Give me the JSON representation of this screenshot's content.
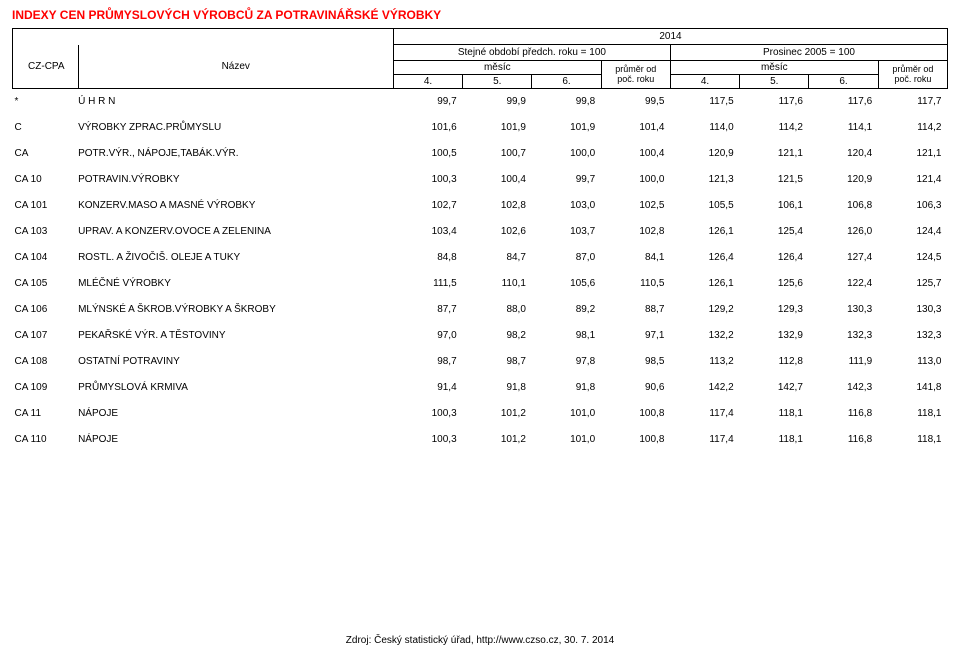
{
  "title": "INDEXY CEN PRŮMYSLOVÝCH VÝROBCŮ ZA POTRAVINÁŘSKÉ VÝROBKY",
  "header": {
    "year": "2014",
    "base1": "Stejné období předch. roku = 100",
    "base2": "Prosinec 2005 = 100",
    "czcpa": "CZ-CPA",
    "nazev": "Název",
    "mesic": "měsíc",
    "avg1": "průměr od",
    "avg2": "poč. roku",
    "m4": "4.",
    "m5": "5.",
    "m6": "6."
  },
  "rows": [
    {
      "code": "*",
      "name": "Ú H R N",
      "v": [
        "99,7",
        "99,9",
        "99,8",
        "99,5",
        "117,5",
        "117,6",
        "117,6",
        "117,7"
      ]
    },
    {
      "code": "C",
      "name": "VÝROBKY ZPRAC.PRŮMYSLU",
      "v": [
        "101,6",
        "101,9",
        "101,9",
        "101,4",
        "114,0",
        "114,2",
        "114,1",
        "114,2"
      ]
    },
    {
      "code": "CA",
      "name": "POTR.VÝR., NÁPOJE,TABÁK.VÝR.",
      "v": [
        "100,5",
        "100,7",
        "100,0",
        "100,4",
        "120,9",
        "121,1",
        "120,4",
        "121,1"
      ]
    },
    {
      "code": "CA 10",
      "name": "POTRAVIN.VÝROBKY",
      "v": [
        "100,3",
        "100,4",
        "99,7",
        "100,0",
        "121,3",
        "121,5",
        "120,9",
        "121,4"
      ]
    },
    {
      "code": "CA 101",
      "name": "KONZERV.MASO A MASNÉ VÝROBKY",
      "v": [
        "102,7",
        "102,8",
        "103,0",
        "102,5",
        "105,5",
        "106,1",
        "106,8",
        "106,3"
      ]
    },
    {
      "code": "CA 103",
      "name": "UPRAV. A KONZERV.OVOCE A ZELENINA",
      "v": [
        "103,4",
        "102,6",
        "103,7",
        "102,8",
        "126,1",
        "125,4",
        "126,0",
        "124,4"
      ]
    },
    {
      "code": "CA 104",
      "name": "ROSTL. A ŽIVOČIŠ. OLEJE A TUKY",
      "v": [
        "84,8",
        "84,7",
        "87,0",
        "84,1",
        "126,4",
        "126,4",
        "127,4",
        "124,5"
      ]
    },
    {
      "code": "CA 105",
      "name": "MLÉČNÉ VÝROBKY",
      "v": [
        "111,5",
        "110,1",
        "105,6",
        "110,5",
        "126,1",
        "125,6",
        "122,4",
        "125,7"
      ]
    },
    {
      "code": "CA 106",
      "name": "MLÝNSKÉ A ŠKROB.VÝROBKY A ŠKROBY",
      "v": [
        "87,7",
        "88,0",
        "89,2",
        "88,7",
        "129,2",
        "129,3",
        "130,3",
        "130,3"
      ]
    },
    {
      "code": "CA 107",
      "name": "PEKAŘSKÉ VÝR. A TĚSTOVINY",
      "v": [
        "97,0",
        "98,2",
        "98,1",
        "97,1",
        "132,2",
        "132,9",
        "132,3",
        "132,3"
      ]
    },
    {
      "code": "CA 108",
      "name": "OSTATNÍ POTRAVINY",
      "v": [
        "98,7",
        "98,7",
        "97,8",
        "98,5",
        "113,2",
        "112,8",
        "111,9",
        "113,0"
      ]
    },
    {
      "code": "CA 109",
      "name": "PRŮMYSLOVÁ KRMIVA",
      "v": [
        "91,4",
        "91,8",
        "91,8",
        "90,6",
        "142,2",
        "142,7",
        "142,3",
        "141,8"
      ]
    },
    {
      "code": "CA 11",
      "name": "NÁPOJE",
      "v": [
        "100,3",
        "101,2",
        "101,0",
        "100,8",
        "117,4",
        "118,1",
        "116,8",
        "118,1"
      ]
    },
    {
      "code": "CA 110",
      "name": "NÁPOJE",
      "v": [
        "100,3",
        "101,2",
        "101,0",
        "100,8",
        "117,4",
        "118,1",
        "116,8",
        "118,1"
      ]
    }
  ],
  "footer": "Zdroj: Český statistický úřad, http://www.czso.cz, 30. 7. 2014"
}
